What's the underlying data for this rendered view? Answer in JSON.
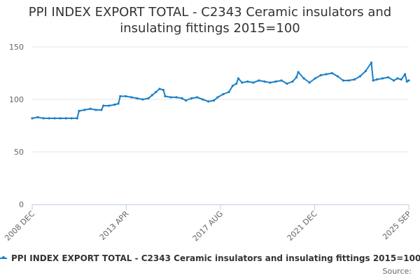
{
  "chart_data": {
    "type": "line",
    "title": "PPI INDEX EXPORT TOTAL - C2343 Ceramic insulators and insulating fittings 2015=100",
    "title_lines": [
      "PPI INDEX EXPORT TOTAL - C2343 Ceramic insulators and",
      "insulating fittings 2015=100"
    ],
    "xlabel": "",
    "ylabel": "",
    "x_tick_labels": [
      "2008 DEC",
      "2013 APR",
      "2017 AUG",
      "2021 DEC",
      "2025 SEP"
    ],
    "y_ticks": [
      0,
      50,
      100,
      150
    ],
    "ylim": [
      0,
      150
    ],
    "grid": "horizontal",
    "legend_position": "bottom",
    "series": [
      {
        "name": "PPI INDEX EXPORT TOTAL - C2343 Ceramic insulators and insulating fittings 2015=100",
        "color": "#1a80c8",
        "points": [
          [
            "2008-12",
            82
          ],
          [
            "2009-03",
            83
          ],
          [
            "2009-06",
            82
          ],
          [
            "2009-09",
            82
          ],
          [
            "2009-12",
            82
          ],
          [
            "2010-03",
            82
          ],
          [
            "2010-06",
            82
          ],
          [
            "2010-09",
            82
          ],
          [
            "2010-12",
            82
          ],
          [
            "2011-01",
            89
          ],
          [
            "2011-04",
            90
          ],
          [
            "2011-07",
            91
          ],
          [
            "2011-10",
            90
          ],
          [
            "2012-01",
            90
          ],
          [
            "2012-02",
            94
          ],
          [
            "2012-05",
            94
          ],
          [
            "2012-08",
            95
          ],
          [
            "2012-10",
            96
          ],
          [
            "2012-11",
            103
          ],
          [
            "2013-02",
            103
          ],
          [
            "2013-05",
            102
          ],
          [
            "2013-08",
            101
          ],
          [
            "2013-11",
            100
          ],
          [
            "2014-02",
            101
          ],
          [
            "2014-04",
            104
          ],
          [
            "2014-06",
            107
          ],
          [
            "2014-08",
            110
          ],
          [
            "2014-10",
            109
          ],
          [
            "2014-11",
            103
          ],
          [
            "2015-02",
            102
          ],
          [
            "2015-05",
            102
          ],
          [
            "2015-08",
            101
          ],
          [
            "2015-10",
            99
          ],
          [
            "2016-01",
            101
          ],
          [
            "2016-04",
            102
          ],
          [
            "2016-07",
            100
          ],
          [
            "2016-10",
            98
          ],
          [
            "2017-01",
            99
          ],
          [
            "2017-03",
            102
          ],
          [
            "2017-06",
            105
          ],
          [
            "2017-09",
            107
          ],
          [
            "2017-11",
            113
          ],
          [
            "2018-01",
            115
          ],
          [
            "2018-02",
            120
          ],
          [
            "2018-04",
            116
          ],
          [
            "2018-07",
            117
          ],
          [
            "2018-10",
            116
          ],
          [
            "2019-01",
            118
          ],
          [
            "2019-04",
            117
          ],
          [
            "2019-07",
            116
          ],
          [
            "2019-10",
            117
          ],
          [
            "2020-01",
            118
          ],
          [
            "2020-04",
            115
          ],
          [
            "2020-07",
            117
          ],
          [
            "2020-09",
            121
          ],
          [
            "2020-10",
            126
          ],
          [
            "2021-01",
            120
          ],
          [
            "2021-04",
            116
          ],
          [
            "2021-07",
            120
          ],
          [
            "2021-10",
            123
          ],
          [
            "2022-01",
            124
          ],
          [
            "2022-04",
            125
          ],
          [
            "2022-07",
            122
          ],
          [
            "2022-10",
            118
          ],
          [
            "2023-01",
            118
          ],
          [
            "2023-04",
            119
          ],
          [
            "2023-07",
            122
          ],
          [
            "2023-10",
            127
          ],
          [
            "2024-01",
            135
          ],
          [
            "2024-02",
            118
          ],
          [
            "2024-04",
            119
          ],
          [
            "2024-07",
            120
          ],
          [
            "2024-10",
            121
          ],
          [
            "2025-01",
            118
          ],
          [
            "2025-03",
            120
          ],
          [
            "2025-05",
            119
          ],
          [
            "2025-07",
            124
          ],
          [
            "2025-08",
            117
          ],
          [
            "2025-09",
            118
          ]
        ]
      }
    ]
  },
  "footer": {
    "source_label": "Source:"
  }
}
